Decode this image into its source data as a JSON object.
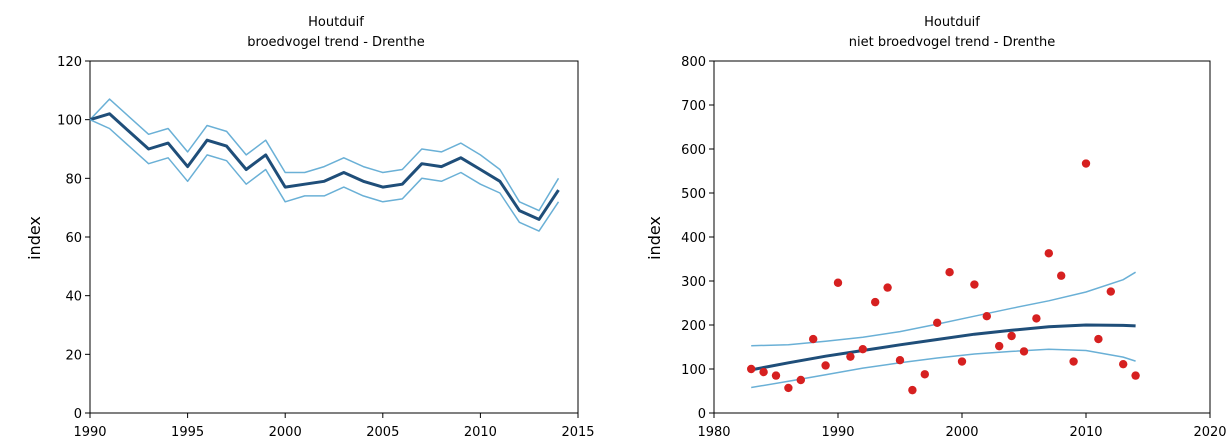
{
  "chart_data": [
    {
      "type": "line",
      "title": "Houtduif",
      "subtitle": "broedvogel trend - Drenthe",
      "xlabel": "",
      "ylabel": "index",
      "xlim": [
        1990,
        2015
      ],
      "ylim": [
        0,
        120
      ],
      "x_ticks": [
        1990,
        1995,
        2000,
        2005,
        2010,
        2015
      ],
      "y_ticks": [
        0,
        20,
        40,
        60,
        80,
        100,
        120
      ],
      "grid": false,
      "colors": {
        "trend": "#1f4e79",
        "band": "#6ab0d6"
      },
      "x": [
        1990,
        1991,
        1992,
        1993,
        1994,
        1995,
        1996,
        1997,
        1998,
        1999,
        2000,
        2001,
        2002,
        2003,
        2004,
        2005,
        2006,
        2007,
        2008,
        2009,
        2010,
        2011,
        2012,
        2013,
        2014
      ],
      "series": [
        {
          "role": "upper",
          "values": [
            100,
            107,
            101,
            95,
            97,
            89,
            98,
            96,
            88,
            93,
            82,
            82,
            84,
            87,
            84,
            82,
            83,
            90,
            89,
            92,
            88,
            83,
            72,
            69,
            80
          ]
        },
        {
          "role": "index",
          "values": [
            100,
            102,
            96,
            90,
            92,
            84,
            93,
            91,
            83,
            88,
            77,
            78,
            79,
            82,
            79,
            77,
            78,
            85,
            84,
            87,
            83,
            79,
            69,
            66,
            76
          ]
        },
        {
          "role": "lower",
          "values": [
            100,
            97,
            91,
            85,
            87,
            79,
            88,
            86,
            78,
            83,
            72,
            74,
            74,
            77,
            74,
            72,
            73,
            80,
            79,
            82,
            78,
            75,
            65,
            62,
            72
          ]
        }
      ]
    },
    {
      "type": "scatter",
      "title": "Houtduif",
      "subtitle": "niet broedvogel trend - Drenthe",
      "xlabel": "",
      "ylabel": "index",
      "xlim": [
        1980,
        2020
      ],
      "ylim": [
        0,
        800
      ],
      "x_ticks": [
        1980,
        1990,
        2000,
        2010,
        2020
      ],
      "y_ticks": [
        0,
        100,
        200,
        300,
        400,
        500,
        600,
        700,
        800
      ],
      "grid": false,
      "colors": {
        "points": "#d62020",
        "trend": "#1f4e79",
        "band": "#6ab0d6"
      },
      "points": {
        "x": [
          1983,
          1984,
          1985,
          1986,
          1987,
          1988,
          1989,
          1990,
          1991,
          1992,
          1993,
          1994,
          1995,
          1996,
          1997,
          1998,
          1999,
          2000,
          2001,
          2002,
          2003,
          2004,
          2005,
          2006,
          2007,
          2008,
          2009,
          2010,
          2011,
          2012,
          2013,
          2014
        ],
        "y": [
          100,
          93,
          85,
          57,
          75,
          168,
          108,
          296,
          128,
          145,
          252,
          285,
          120,
          52,
          88,
          205,
          320,
          117,
          292,
          220,
          152,
          175,
          140,
          215,
          363,
          312,
          117,
          567,
          168,
          276,
          111,
          85
        ]
      },
      "trend": {
        "x": [
          1983,
          1986,
          1989,
          1992,
          1995,
          1998,
          2001,
          2004,
          2007,
          2010,
          2013,
          2014
        ],
        "values": [
          98,
          114,
          129,
          142,
          155,
          167,
          179,
          188,
          196,
          200,
          199,
          198
        ]
      },
      "upper": {
        "x": [
          1983,
          1986,
          1989,
          1992,
          1995,
          1998,
          2001,
          2004,
          2007,
          2010,
          2013,
          2014
        ],
        "values": [
          153,
          155,
          163,
          172,
          185,
          202,
          220,
          238,
          255,
          275,
          303,
          320
        ]
      },
      "lower": {
        "x": [
          1983,
          1986,
          1989,
          1992,
          1995,
          1998,
          2001,
          2004,
          2007,
          2010,
          2013,
          2014
        ],
        "values": [
          58,
          72,
          87,
          102,
          114,
          125,
          134,
          140,
          145,
          142,
          127,
          118
        ]
      }
    }
  ]
}
